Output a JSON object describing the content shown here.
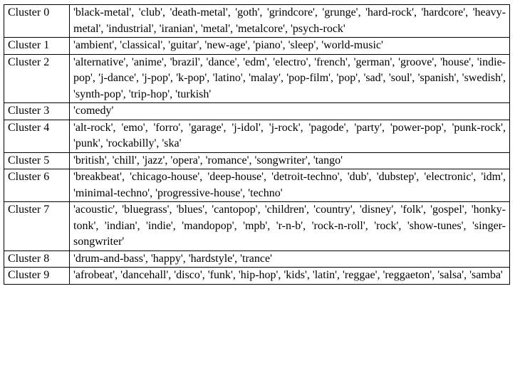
{
  "clusters": [
    {
      "label": "Cluster 0",
      "genres": "'black-metal', 'club', 'death-metal', 'goth', 'grindcore', 'grunge', 'hard-rock', 'hardcore', 'heavy-metal', 'industrial', 'iranian', 'metal', 'metalcore', 'psych-rock'"
    },
    {
      "label": "Cluster 1",
      "genres": "'ambient', 'classical', 'guitar', 'new-age', 'piano', 'sleep', 'world-music'"
    },
    {
      "label": "Cluster 2",
      "genres": "'alternative', 'anime', 'brazil', 'dance', 'edm', 'electro', 'french', 'german', 'groove', 'house', 'indie-pop', 'j-dance', 'j-pop', 'k-pop', 'latino', 'malay', 'pop-film', 'pop', 'sad', 'soul', 'spanish', 'swedish', 'synth-pop', 'trip-hop', 'turkish'"
    },
    {
      "label": "Cluster 3",
      "genres": "'comedy'"
    },
    {
      "label": "Cluster 4",
      "genres": "'alt-rock', 'emo', 'forro', 'garage', 'j-idol', 'j-rock', 'pagode', 'party', 'power-pop', 'punk-rock', 'punk', 'rockabilly', 'ska'"
    },
    {
      "label": "Cluster 5",
      "genres": "'british', 'chill', 'jazz', 'opera', 'romance', 'songwriter', 'tango'"
    },
    {
      "label": "Cluster 6",
      "genres": "'breakbeat', 'chicago-house', 'deep-house', 'detroit-techno', 'dub', 'dubstep', 'electronic', 'idm', 'minimal-techno', 'progressive-house', 'techno'"
    },
    {
      "label": "Cluster 7",
      "genres": "'acoustic', 'bluegrass', 'blues', 'cantopop', 'children', 'country', 'disney', 'folk', 'gospel', 'honky-tonk', 'indian', 'indie', 'mandopop', 'mpb', 'r-n-b', 'rock-n-roll', 'rock', 'show-tunes', 'singer-songwriter'"
    },
    {
      "label": "Cluster 8",
      "genres": "'drum-and-bass', 'happy', 'hardstyle', 'trance'"
    },
    {
      "label": "Cluster 9",
      "genres": "'afrobeat', 'dancehall', 'disco', 'funk', 'hip-hop', 'kids', 'latin', 'reggae', 'reggaeton', 'salsa', 'samba'"
    }
  ]
}
